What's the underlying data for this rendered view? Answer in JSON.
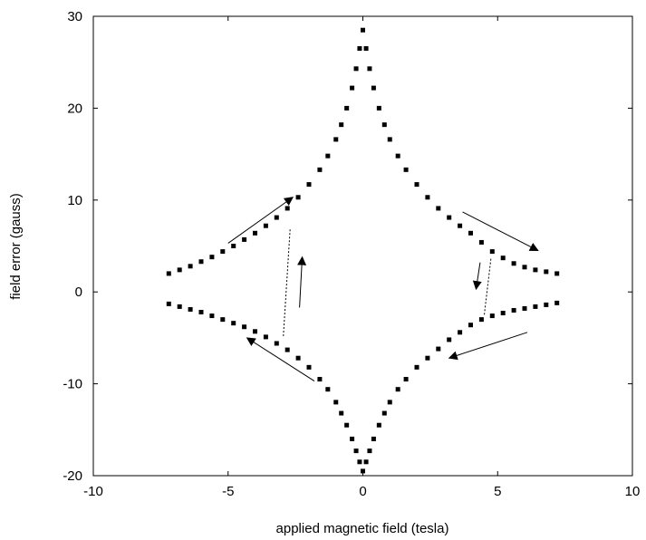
{
  "chart_data": {
    "type": "scatter",
    "title": "",
    "xlabel": "applied magnetic field (tesla)",
    "ylabel": "field error (gauss)",
    "xlim": [
      -10,
      10
    ],
    "ylim": [
      -20,
      30
    ],
    "xticks": [
      -10,
      -5,
      0,
      5,
      10
    ],
    "yticks": [
      -20,
      -10,
      0,
      10,
      20,
      30
    ],
    "xtick_labels": [
      "-10",
      "-5",
      "0",
      "5",
      "10"
    ],
    "ytick_labels": [
      "-20",
      "-10",
      "0",
      "10",
      "20",
      "30"
    ],
    "grid": false,
    "series": [
      {
        "key": "upper-branch",
        "x": [
          -7.2,
          -6.8,
          -6.4,
          -6.0,
          -5.6,
          -5.2,
          -4.8,
          -4.4,
          -4.0,
          -3.6,
          -3.2,
          -2.8,
          -2.4,
          -2.0,
          -1.6,
          -1.3,
          -1.0,
          -0.8,
          -0.6,
          -0.4,
          -0.25,
          -0.12,
          0,
          0.12,
          0.25,
          0.4,
          0.6,
          0.8,
          1.0,
          1.3,
          1.6,
          2.0,
          2.4,
          2.8,
          3.2,
          3.6,
          4.0,
          4.4,
          4.8,
          5.2,
          5.6,
          6.0,
          6.4,
          6.8,
          7.2
        ],
        "y": [
          2.0,
          2.4,
          2.8,
          3.3,
          3.8,
          4.4,
          5.0,
          5.7,
          6.4,
          7.2,
          8.1,
          9.1,
          10.3,
          11.7,
          13.3,
          14.8,
          16.6,
          18.2,
          20.0,
          22.2,
          24.3,
          26.5,
          28.5,
          26.5,
          24.3,
          22.2,
          20.0,
          18.2,
          16.6,
          14.8,
          13.3,
          11.7,
          10.3,
          9.1,
          8.1,
          7.2,
          6.4,
          5.4,
          4.4,
          3.7,
          3.1,
          2.7,
          2.4,
          2.2,
          2.0
        ]
      },
      {
        "key": "lower-branch",
        "x": [
          -7.2,
          -6.8,
          -6.4,
          -6.0,
          -5.6,
          -5.2,
          -4.8,
          -4.4,
          -4.0,
          -3.6,
          -3.2,
          -2.8,
          -2.4,
          -2.0,
          -1.6,
          -1.3,
          -1.0,
          -0.8,
          -0.6,
          -0.4,
          -0.25,
          -0.12,
          0,
          0.12,
          0.25,
          0.4,
          0.6,
          0.8,
          1.0,
          1.3,
          1.6,
          2.0,
          2.4,
          2.8,
          3.2,
          3.6,
          4.0,
          4.4,
          4.8,
          5.2,
          5.6,
          6.0,
          6.4,
          6.8,
          7.2
        ],
        "y": [
          -1.3,
          -1.6,
          -1.9,
          -2.2,
          -2.6,
          -3.0,
          -3.4,
          -3.8,
          -4.3,
          -4.9,
          -5.6,
          -6.3,
          -7.2,
          -8.2,
          -9.5,
          -10.6,
          -12.0,
          -13.2,
          -14.5,
          -16.0,
          -17.3,
          -18.5,
          -19.5,
          -18.5,
          -17.3,
          -16.0,
          -14.5,
          -13.2,
          -12.0,
          -10.6,
          -9.5,
          -8.2,
          -7.2,
          -6.2,
          -5.2,
          -4.4,
          -3.6,
          -3.0,
          -2.6,
          -2.3,
          -2.0,
          -1.8,
          -1.6,
          -1.4,
          -1.2
        ]
      }
    ],
    "transitions": [
      {
        "key": "left-jump",
        "x": [
          -2.7,
          -2.95
        ],
        "y": [
          6.8,
          -4.8
        ]
      },
      {
        "key": "right-jump",
        "x": [
          4.75,
          4.5
        ],
        "y": [
          3.6,
          -2.6
        ]
      }
    ],
    "arrows": [
      {
        "key": "upper-left",
        "from": [
          -5.0,
          5.3
        ],
        "to": [
          -2.6,
          10.3
        ]
      },
      {
        "key": "upper-right",
        "from": [
          3.7,
          8.7
        ],
        "to": [
          6.5,
          4.5
        ]
      },
      {
        "key": "lower-left",
        "from": [
          -1.8,
          -9.7
        ],
        "to": [
          -4.3,
          -5.0
        ]
      },
      {
        "key": "lower-right",
        "from": [
          6.1,
          -4.4
        ],
        "to": [
          3.2,
          -7.2
        ]
      },
      {
        "key": "middle-up",
        "from": [
          -2.35,
          -1.7
        ],
        "to": [
          -2.25,
          3.8
        ]
      },
      {
        "key": "middle-down",
        "from": [
          4.35,
          3.2
        ],
        "to": [
          4.2,
          0.3
        ]
      }
    ]
  }
}
